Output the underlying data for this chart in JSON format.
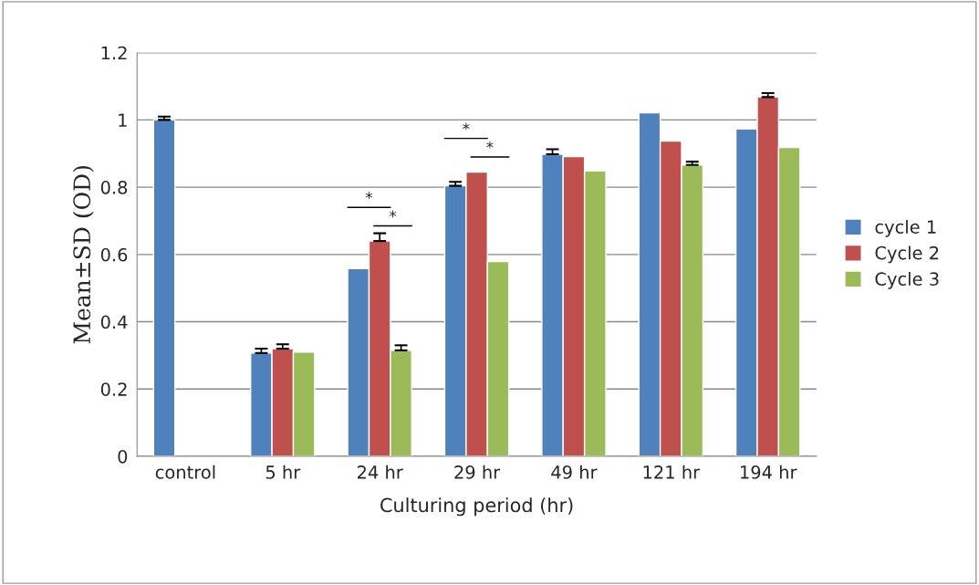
{
  "chart_data": {
    "type": "bar",
    "xlabel": "Culturing period (hr)",
    "ylabel": "Mean±SD (OD)",
    "categories": [
      "control",
      "5 hr",
      "24 hr",
      "29 hr",
      "49 hr",
      "121 hr",
      "194 hr"
    ],
    "series": [
      {
        "name": "cycle 1",
        "color": "#4f81bd",
        "values": [
          1.0,
          0.307,
          0.558,
          0.804,
          0.898,
          1.021,
          0.973
        ],
        "errors": [
          0.01,
          0.013,
          null,
          0.012,
          0.015,
          null,
          null
        ]
      },
      {
        "name": "Cycle 2",
        "color": "#c0504d",
        "values": [
          null,
          0.32,
          0.64,
          0.845,
          0.891,
          0.937,
          1.068
        ],
        "errors": [
          null,
          0.013,
          0.023,
          null,
          null,
          null,
          0.012
        ]
      },
      {
        "name": "Cycle 3",
        "color": "#9bbb59",
        "values": [
          null,
          0.31,
          0.315,
          0.579,
          0.848,
          0.866,
          0.918
        ],
        "errors": [
          null,
          null,
          0.015,
          null,
          null,
          0.01,
          null
        ]
      }
    ],
    "annotations": [
      "*",
      "*",
      "*",
      "*"
    ],
    "ylim": [
      0,
      1.2
    ],
    "yticks": [
      0,
      0.2,
      0.4,
      0.6,
      0.8,
      1,
      1.2
    ],
    "grid": "y",
    "legend": "right"
  }
}
